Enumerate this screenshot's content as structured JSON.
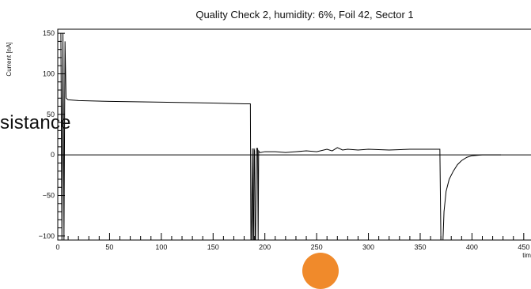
{
  "chart_data": {
    "type": "line",
    "title": "Quality Check 2, humidity: 6%, Foil 42, Sector 1",
    "xlabel": "time [s]",
    "ylabel": "Current [nA]",
    "xlim": [
      0,
      470
    ],
    "ylim": [
      -105,
      155
    ],
    "xticks": [
      0,
      50,
      100,
      150,
      200,
      250,
      300,
      350,
      400,
      450
    ],
    "yticks": [
      -100,
      -50,
      0,
      50,
      100,
      150
    ],
    "grid": false,
    "zero_line": true,
    "series": [
      {
        "values_x": [
          3,
          4,
          5,
          6,
          7,
          8,
          10,
          20,
          50,
          100,
          150,
          180,
          186,
          186.5,
          187,
          188,
          188.5,
          189,
          189.5,
          190,
          190.5,
          191,
          192,
          193,
          193.5,
          194,
          195,
          196,
          200,
          210,
          220,
          230,
          240,
          250,
          260,
          265,
          270,
          275,
          280,
          290,
          300,
          320,
          340,
          360,
          369,
          370,
          371,
          372,
          373,
          375,
          378,
          382,
          386,
          390,
          395,
          400,
          410,
          420,
          428
        ],
        "values_y": [
          150,
          -105,
          150,
          -105,
          140,
          70,
          68,
          67,
          66,
          65,
          64,
          63,
          63,
          -105,
          -105,
          8,
          -105,
          -105,
          8,
          5,
          -105,
          -105,
          8,
          8,
          -105,
          5,
          3,
          3,
          4,
          4,
          3,
          4,
          5,
          4,
          7,
          5,
          9,
          6,
          7,
          6,
          7,
          6,
          7,
          7,
          7,
          -105,
          -105,
          -105,
          -70,
          -45,
          -30,
          -20,
          -12,
          -7,
          -3,
          -1,
          0,
          0,
          0
        ]
      }
    ]
  },
  "overlay": {
    "partial_text": "sistance"
  }
}
